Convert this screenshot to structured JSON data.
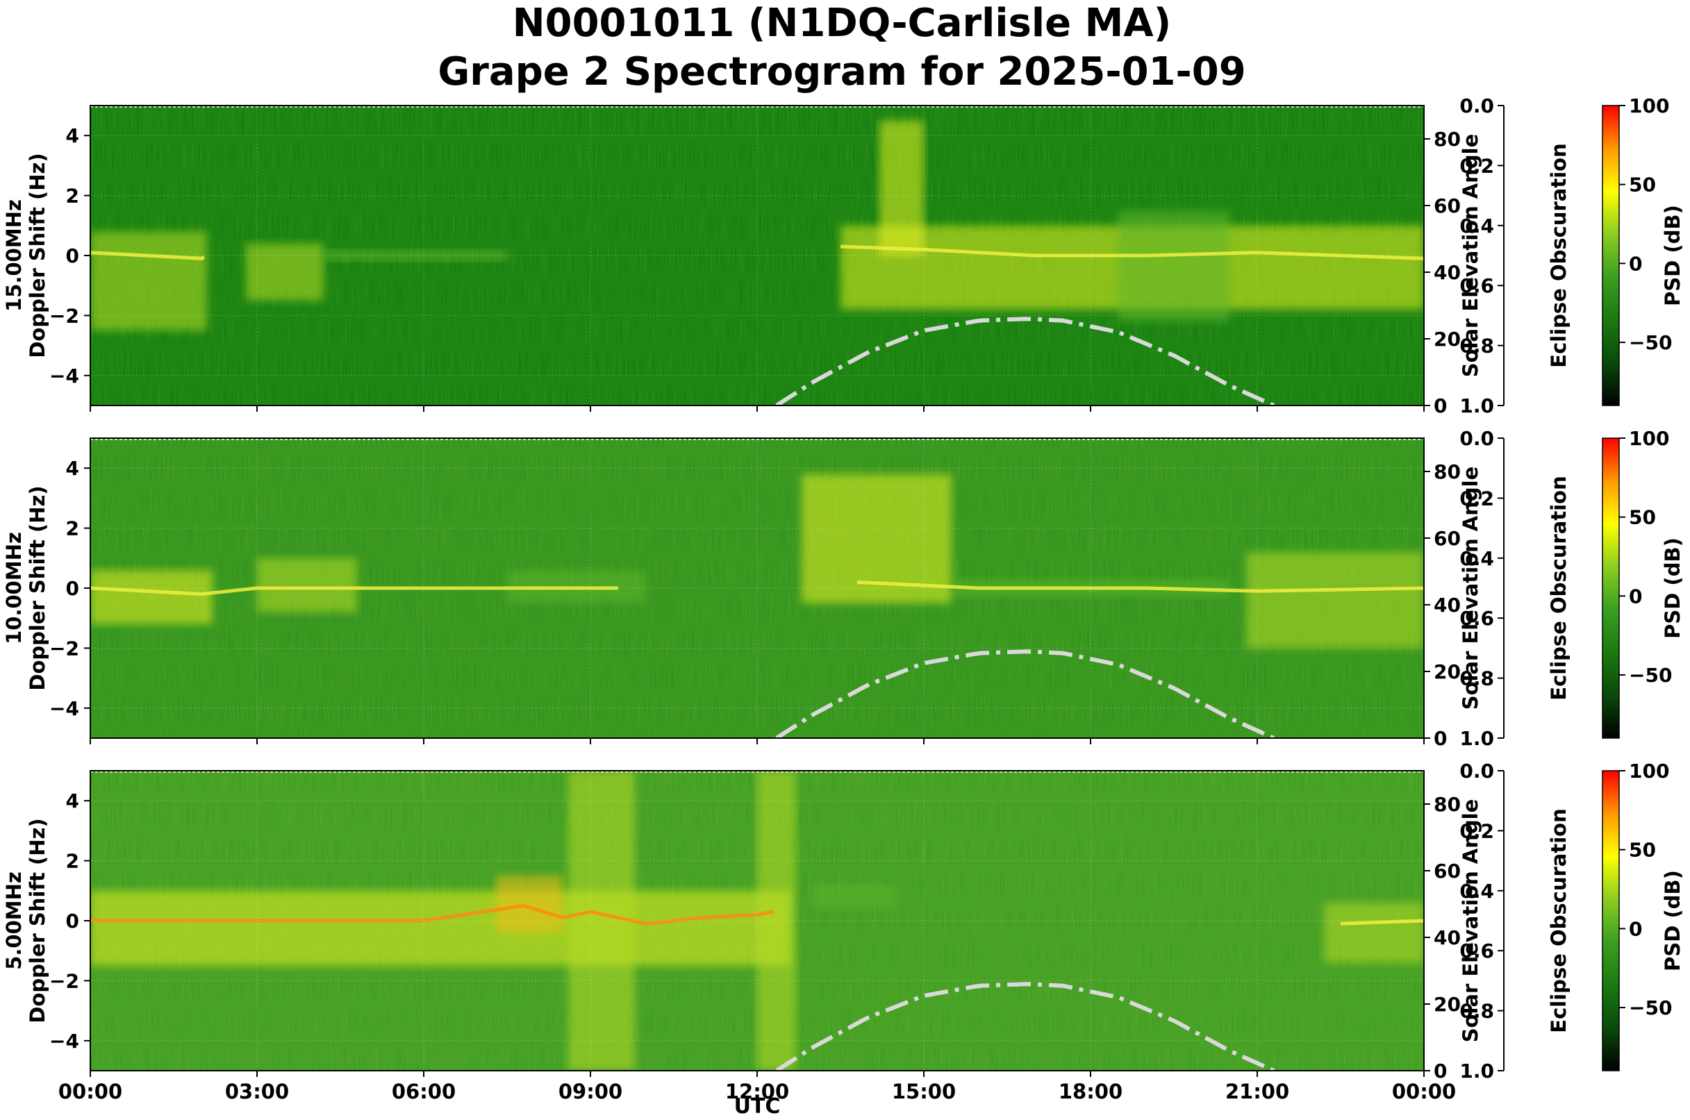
{
  "chart_data": {
    "type": "heatmap",
    "title_line1": "N0001011 (N1DQ-Carlisle MA)",
    "title_line2": "Grape 2 Spectrogram for 2025-01-09",
    "xlabel": "UTC",
    "x_ticks": [
      "00:00",
      "03:00",
      "06:00",
      "09:00",
      "12:00",
      "15:00",
      "18:00",
      "21:00",
      "00:00"
    ],
    "xlim_hours": [
      0,
      24
    ],
    "ylabel_suffix": "Doppler Shift (Hz)",
    "ylim_hz": [
      -5,
      5
    ],
    "y_ticks": [
      4,
      2,
      0,
      -2,
      -4
    ],
    "y2_label": "Solar Elevation Angle",
    "y2_lim": [
      0,
      90
    ],
    "y2_ticks": [
      80,
      60,
      40,
      20,
      0
    ],
    "y3_label": "Eclipse Obscuration",
    "y3_lim": [
      0.0,
      1.0
    ],
    "y3_ticks": [
      "0.0",
      "0.2",
      "0.4",
      "0.6",
      "0.8",
      "1.0"
    ],
    "colorbar_label": "PSD (dB)",
    "colorbar_range": [
      -90,
      100
    ],
    "colorbar_ticks": [
      100,
      50,
      0,
      -50
    ],
    "colormap": [
      "#000000",
      "#0a4a0a",
      "#1a7a10",
      "#3aa020",
      "#8ccd20",
      "#ffff00",
      "#ff9900",
      "#ff0000"
    ],
    "grid": true,
    "solar_elevation": {
      "style": "dash-dot",
      "color": "#d9d9d9",
      "hours": [
        12.35,
        13.0,
        14.0,
        15.0,
        16.0,
        16.85,
        17.5,
        18.5,
        19.5,
        20.5,
        21.3
      ],
      "degrees": [
        0,
        7,
        16,
        22.5,
        25.5,
        26,
        25.5,
        22,
        15,
        6,
        0
      ]
    },
    "series": [
      {
        "name": "15.00MHz",
        "background": "#0b7a0b",
        "carrier": [
          [
            0,
            0.1
          ],
          [
            1,
            0.0
          ],
          [
            2,
            -0.1
          ],
          [
            2.05,
            -0.05
          ]
        ],
        "segments": [
          {
            "x0": 0.0,
            "x1": 2.1,
            "y0": -2.5,
            "y1": 0.8,
            "level": 0.55
          },
          {
            "x0": 2.8,
            "x1": 4.2,
            "y0": -1.5,
            "y1": 0.4,
            "level": 0.45
          },
          {
            "x0": 4.2,
            "x1": 7.5,
            "y0": -0.2,
            "y1": 0.2,
            "level": 0.3
          },
          {
            "x0": 13.5,
            "x1": 24.0,
            "y0": -1.8,
            "y1": 1.0,
            "level": 0.6
          },
          {
            "x0": 14.2,
            "x1": 15.0,
            "y0": 0.0,
            "y1": 4.5,
            "level": 0.6
          },
          {
            "x0": 18.5,
            "x1": 20.5,
            "y0": -2.2,
            "y1": 1.5,
            "level": 0.4
          }
        ],
        "carrier2": [
          [
            13.5,
            0.3
          ],
          [
            15,
            0.2
          ],
          [
            17,
            0.0
          ],
          [
            19,
            0.0
          ],
          [
            21,
            0.1
          ],
          [
            24,
            -0.1
          ]
        ]
      },
      {
        "name": "10.00MHz",
        "background": "#2a8f1a",
        "carrier": [
          [
            0,
            0.0
          ],
          [
            1,
            -0.1
          ],
          [
            2,
            -0.2
          ],
          [
            3,
            0.0
          ],
          [
            5,
            0.0
          ],
          [
            8,
            0.0
          ],
          [
            9.5,
            0.0
          ]
        ],
        "segments": [
          {
            "x0": 0.0,
            "x1": 2.2,
            "y0": -1.2,
            "y1": 0.6,
            "level": 0.6
          },
          {
            "x0": 3.0,
            "x1": 4.8,
            "y0": -0.8,
            "y1": 1.0,
            "level": 0.55
          },
          {
            "x0": 7.5,
            "x1": 10.0,
            "y0": -0.5,
            "y1": 0.6,
            "level": 0.4
          },
          {
            "x0": 12.8,
            "x1": 15.5,
            "y0": -0.5,
            "y1": 3.8,
            "level": 0.6
          },
          {
            "x0": 15.5,
            "x1": 20.5,
            "y0": -0.3,
            "y1": 0.3,
            "level": 0.35
          },
          {
            "x0": 20.8,
            "x1": 24.0,
            "y0": -2.0,
            "y1": 1.2,
            "level": 0.55
          }
        ],
        "carrier2": [
          [
            13.8,
            0.2
          ],
          [
            16,
            0.0
          ],
          [
            19,
            0.0
          ],
          [
            21,
            -0.1
          ],
          [
            24,
            0.0
          ]
        ]
      },
      {
        "name": "5.00MHz",
        "background": "#3a9a20",
        "carrier": [
          [
            0,
            0.0
          ],
          [
            3,
            0.0
          ],
          [
            6,
            0.0
          ],
          [
            7.8,
            0.5
          ],
          [
            8.5,
            0.1
          ],
          [
            9,
            0.3
          ],
          [
            9.5,
            0.1
          ],
          [
            10,
            -0.1
          ],
          [
            11,
            0.1
          ],
          [
            12,
            0.2
          ],
          [
            12.3,
            0.3
          ]
        ],
        "segments": [
          {
            "x0": 0.0,
            "x1": 12.6,
            "y0": -1.5,
            "y1": 1.0,
            "level": 0.62
          },
          {
            "x0": 8.6,
            "x1": 9.8,
            "y0": -5.0,
            "y1": 5.0,
            "level": 0.5
          },
          {
            "x0": 7.3,
            "x1": 8.5,
            "y0": -0.4,
            "y1": 1.5,
            "level": 0.65
          },
          {
            "x0": 12.0,
            "x1": 12.7,
            "y0": -5.0,
            "y1": 5.0,
            "level": 0.5
          },
          {
            "x0": 13.0,
            "x1": 14.5,
            "y0": 0.4,
            "y1": 1.2,
            "level": 0.35
          },
          {
            "x0": 22.2,
            "x1": 24.0,
            "y0": -1.4,
            "y1": 0.6,
            "level": 0.45
          }
        ],
        "carrier2": [
          [
            22.5,
            -0.1
          ],
          [
            24,
            0.0
          ]
        ]
      }
    ]
  }
}
